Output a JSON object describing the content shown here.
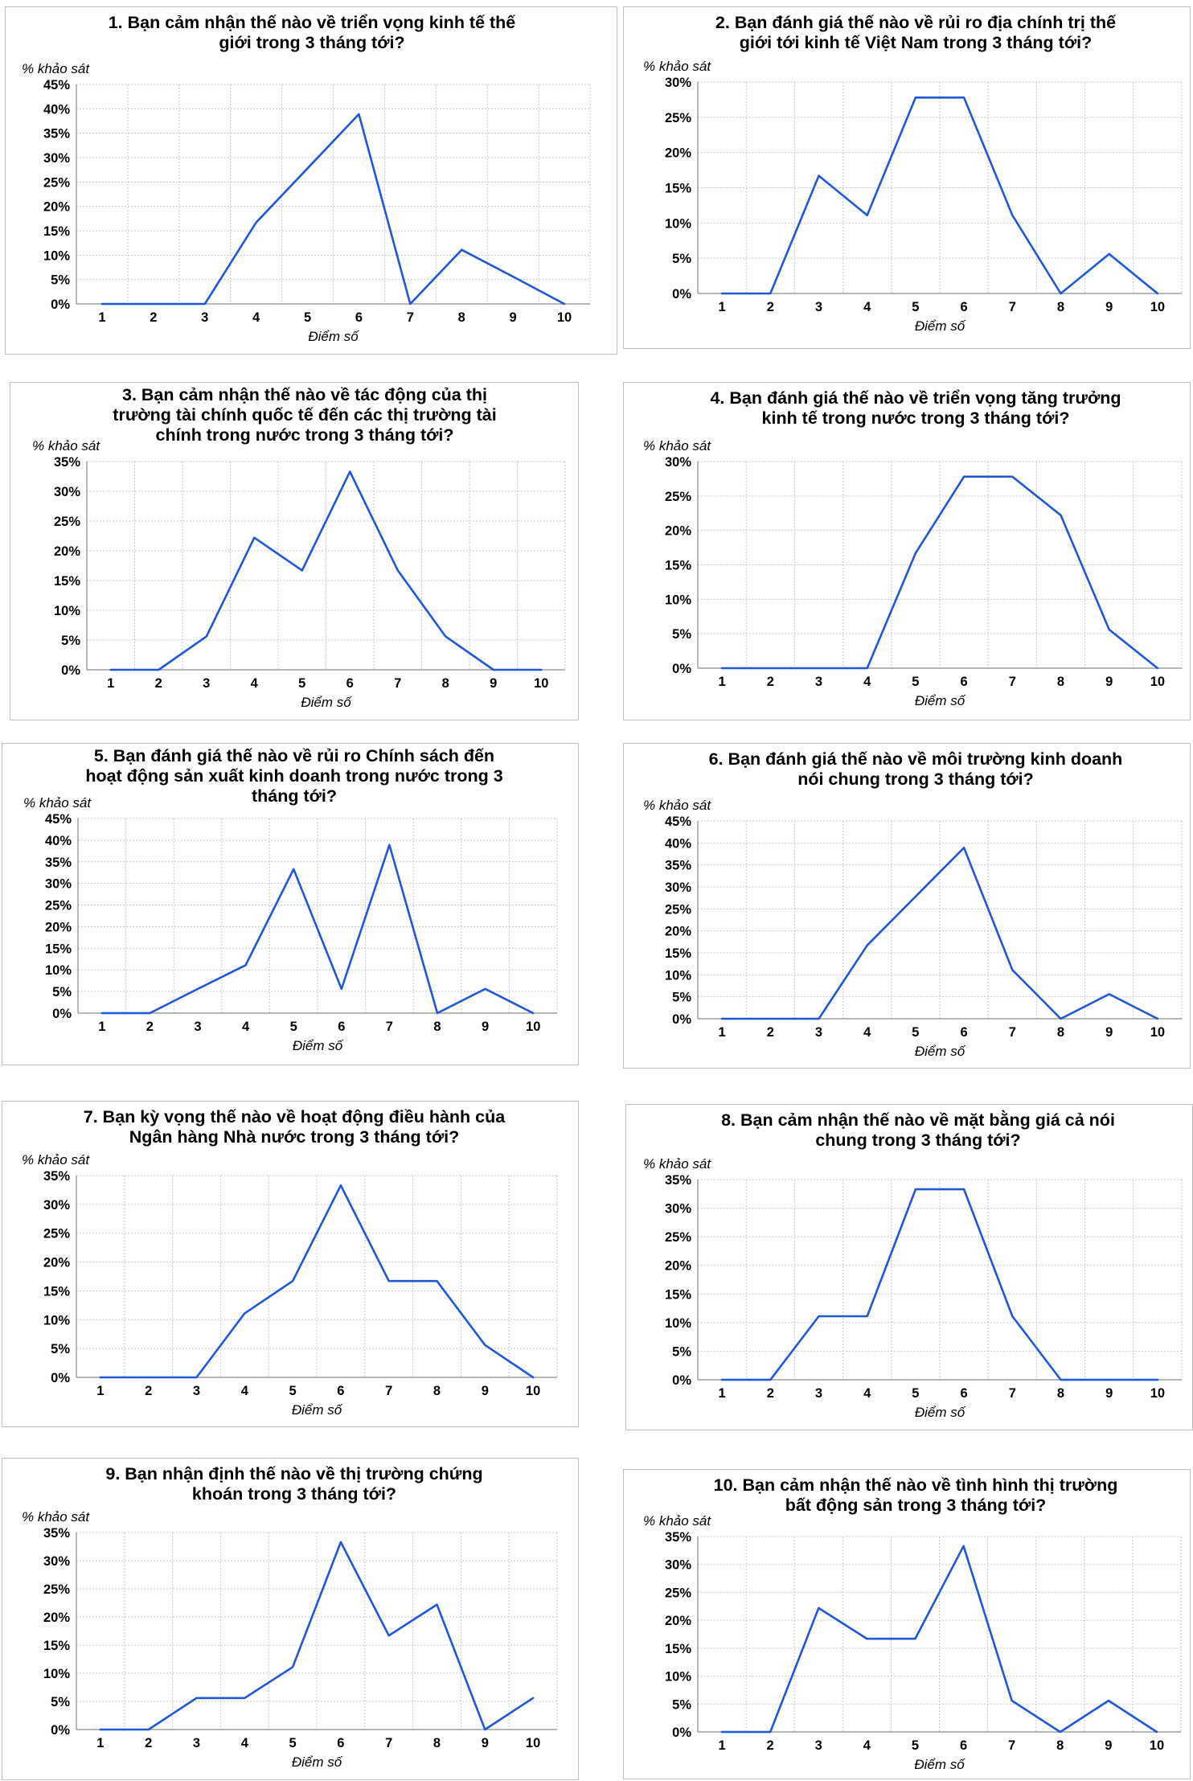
{
  "chart_data": [
    {
      "type": "line",
      "title_lines": [
        "1. Bạn cảm nhận thế nào về triển vọng kinh tế thế",
        "giới trong 3 tháng tới?"
      ],
      "ylabel": "% khảo sát",
      "xlabel": "Điểm số",
      "x": [
        1,
        2,
        3,
        4,
        5,
        6,
        7,
        8,
        9,
        10
      ],
      "x_ticks": [
        "1",
        "2",
        "3",
        "4",
        "5",
        "6",
        "7",
        "8",
        "9",
        "10"
      ],
      "values": [
        0,
        0,
        0,
        16.7,
        27.8,
        38.9,
        0,
        11.1,
        5.6,
        0
      ],
      "ylim": [
        0,
        45
      ],
      "y_ticks": [
        "0%",
        "5%",
        "10%",
        "15%",
        "20%",
        "25%",
        "30%",
        "35%",
        "40%",
        "45%"
      ],
      "grid": true
    },
    {
      "type": "line",
      "title_lines": [
        "2. Bạn đánh giá thế nào về rủi ro địa chính trị thế",
        "giới tới kinh tế Việt Nam trong 3 tháng tới?"
      ],
      "ylabel": "% khảo sát",
      "xlabel": "Điểm số",
      "x": [
        1,
        2,
        3,
        4,
        5,
        6,
        7,
        8,
        9,
        10
      ],
      "x_ticks": [
        "1",
        "2",
        "3",
        "4",
        "5",
        "6",
        "7",
        "8",
        "9",
        "10"
      ],
      "values": [
        0,
        0,
        16.7,
        11.1,
        27.8,
        27.8,
        11.1,
        0,
        5.6,
        0
      ],
      "ylim": [
        0,
        30
      ],
      "y_ticks": [
        "0%",
        "5%",
        "10%",
        "15%",
        "20%",
        "25%",
        "30%"
      ],
      "grid": true
    },
    {
      "type": "line",
      "title_lines": [
        "3. Bạn cảm nhận thế nào về tác động của thị",
        "trường tài chính quốc tế đến các thị trường tài",
        "chính trong nước trong 3 tháng tới?"
      ],
      "ylabel": "% khảo sát",
      "xlabel": "Điểm số",
      "x": [
        1,
        2,
        3,
        4,
        5,
        6,
        7,
        8,
        9,
        10
      ],
      "x_ticks": [
        "1",
        "2",
        "3",
        "4",
        "5",
        "6",
        "7",
        "8",
        "9",
        "10"
      ],
      "values": [
        0,
        0,
        5.6,
        22.2,
        16.7,
        33.3,
        16.7,
        5.6,
        0,
        0
      ],
      "ylim": [
        0,
        35
      ],
      "y_ticks": [
        "0%",
        "5%",
        "10%",
        "15%",
        "20%",
        "25%",
        "30%",
        "35%"
      ],
      "grid": true
    },
    {
      "type": "line",
      "title_lines": [
        "4. Bạn đánh giá thế nào về triển vọng tăng trưởng",
        "kinh tế trong nước trong 3 tháng tới?"
      ],
      "ylabel": "% khảo sát",
      "xlabel": "Điểm số",
      "x": [
        1,
        2,
        3,
        4,
        5,
        6,
        7,
        8,
        9,
        10
      ],
      "x_ticks": [
        "1",
        "2",
        "3",
        "4",
        "5",
        "6",
        "7",
        "8",
        "9",
        "10"
      ],
      "values": [
        0,
        0,
        0,
        0,
        16.7,
        27.8,
        27.8,
        22.2,
        5.6,
        0
      ],
      "ylim": [
        0,
        30
      ],
      "y_ticks": [
        "0%",
        "5%",
        "10%",
        "15%",
        "20%",
        "25%",
        "30%"
      ],
      "grid": true
    },
    {
      "type": "line",
      "title_lines": [
        "5. Bạn đánh giá thế nào về rủi ro Chính sách đến",
        "hoạt động sản xuất kinh doanh trong nước trong 3",
        "tháng tới?"
      ],
      "ylabel": "% khảo sát",
      "xlabel": "Điểm số",
      "x": [
        1,
        2,
        3,
        4,
        5,
        6,
        7,
        8,
        9,
        10
      ],
      "x_ticks": [
        "1",
        "2",
        "3",
        "4",
        "5",
        "6",
        "7",
        "8",
        "9",
        "10"
      ],
      "values": [
        0,
        0,
        5.6,
        11.1,
        33.3,
        5.6,
        38.9,
        0,
        5.6,
        0
      ],
      "ylim": [
        0,
        45
      ],
      "y_ticks": [
        "0%",
        "5%",
        "10%",
        "15%",
        "20%",
        "25%",
        "30%",
        "35%",
        "40%",
        "45%"
      ],
      "grid": true
    },
    {
      "type": "line",
      "title_lines": [
        "6. Bạn đánh giá thế nào về môi trường kinh doanh",
        "nói chung trong 3 tháng tới?"
      ],
      "ylabel": "% khảo sát",
      "xlabel": "Điểm số",
      "x": [
        1,
        2,
        3,
        4,
        5,
        6,
        7,
        8,
        9,
        10
      ],
      "x_ticks": [
        "1",
        "2",
        "3",
        "4",
        "5",
        "6",
        "7",
        "8",
        "9",
        "10"
      ],
      "values": [
        0,
        0,
        0,
        16.7,
        27.8,
        38.9,
        11.1,
        0,
        5.6,
        0
      ],
      "ylim": [
        0,
        45
      ],
      "y_ticks": [
        "0%",
        "5%",
        "10%",
        "15%",
        "20%",
        "25%",
        "30%",
        "35%",
        "40%",
        "45%"
      ],
      "grid": true
    },
    {
      "type": "line",
      "title_lines": [
        "7. Bạn kỳ vọng thế nào về hoạt động điều hành của",
        "Ngân hàng Nhà nước trong 3 tháng tới?"
      ],
      "ylabel": "% khảo sát",
      "xlabel": "Điểm số",
      "x": [
        1,
        2,
        3,
        4,
        5,
        6,
        7,
        8,
        9,
        10
      ],
      "x_ticks": [
        "1",
        "2",
        "3",
        "4",
        "5",
        "6",
        "7",
        "8",
        "9",
        "10"
      ],
      "values": [
        0,
        0,
        0,
        11.1,
        16.7,
        33.3,
        16.7,
        16.7,
        5.6,
        0
      ],
      "ylim": [
        0,
        35
      ],
      "y_ticks": [
        "0%",
        "5%",
        "10%",
        "15%",
        "20%",
        "25%",
        "30%",
        "35%"
      ],
      "grid": true
    },
    {
      "type": "line",
      "title_lines": [
        "8. Bạn cảm nhận thế nào về mặt bằng giá cả nói",
        "chung trong 3 tháng tới?"
      ],
      "ylabel": "% khảo sát",
      "xlabel": "Điểm số",
      "x": [
        1,
        2,
        3,
        4,
        5,
        6,
        7,
        8,
        9,
        10
      ],
      "x_ticks": [
        "1",
        "2",
        "3",
        "4",
        "5",
        "6",
        "7",
        "8",
        "9",
        "10"
      ],
      "values": [
        0,
        0,
        11.1,
        11.1,
        33.3,
        33.3,
        11.1,
        0,
        0,
        0
      ],
      "ylim": [
        0,
        35
      ],
      "y_ticks": [
        "0%",
        "5%",
        "10%",
        "15%",
        "20%",
        "25%",
        "30%",
        "35%"
      ],
      "grid": true
    },
    {
      "type": "line",
      "title_lines": [
        "9. Bạn nhận định thế nào về thị trường chứng",
        "khoán trong 3 tháng tới?"
      ],
      "ylabel": "% khảo sát",
      "xlabel": "Điểm số",
      "x": [
        1,
        2,
        3,
        4,
        5,
        6,
        7,
        8,
        9,
        10
      ],
      "x_ticks": [
        "1",
        "2",
        "3",
        "4",
        "5",
        "6",
        "7",
        "8",
        "9",
        "10"
      ],
      "values": [
        0,
        0,
        5.6,
        5.6,
        11.1,
        33.3,
        16.7,
        22.2,
        0,
        5.6
      ],
      "ylim": [
        0,
        35
      ],
      "y_ticks": [
        "0%",
        "5%",
        "10%",
        "15%",
        "20%",
        "25%",
        "30%",
        "35%"
      ],
      "grid": true
    },
    {
      "type": "line",
      "title_lines": [
        "10. Bạn cảm nhận thế nào về tình hình thị trường",
        "bất động sản trong 3 tháng tới?"
      ],
      "ylabel": "% khảo sát",
      "xlabel": "Điểm số",
      "x": [
        1,
        2,
        3,
        4,
        5,
        6,
        7,
        8,
        9,
        10
      ],
      "x_ticks": [
        "1",
        "2",
        "3",
        "4",
        "5",
        "6",
        "7",
        "8",
        "9",
        "10"
      ],
      "values": [
        0,
        0,
        22.2,
        16.7,
        16.7,
        33.3,
        5.6,
        0,
        5.6,
        0
      ],
      "ylim": [
        0,
        35
      ],
      "y_ticks": [
        "0%",
        "5%",
        "10%",
        "15%",
        "20%",
        "25%",
        "30%",
        "35%"
      ],
      "grid": true
    }
  ],
  "colors": {
    "series": "#1f57d6",
    "grid": "#c8c8c8",
    "axis": "#8c8c8c",
    "border": "#bfbfbf"
  }
}
